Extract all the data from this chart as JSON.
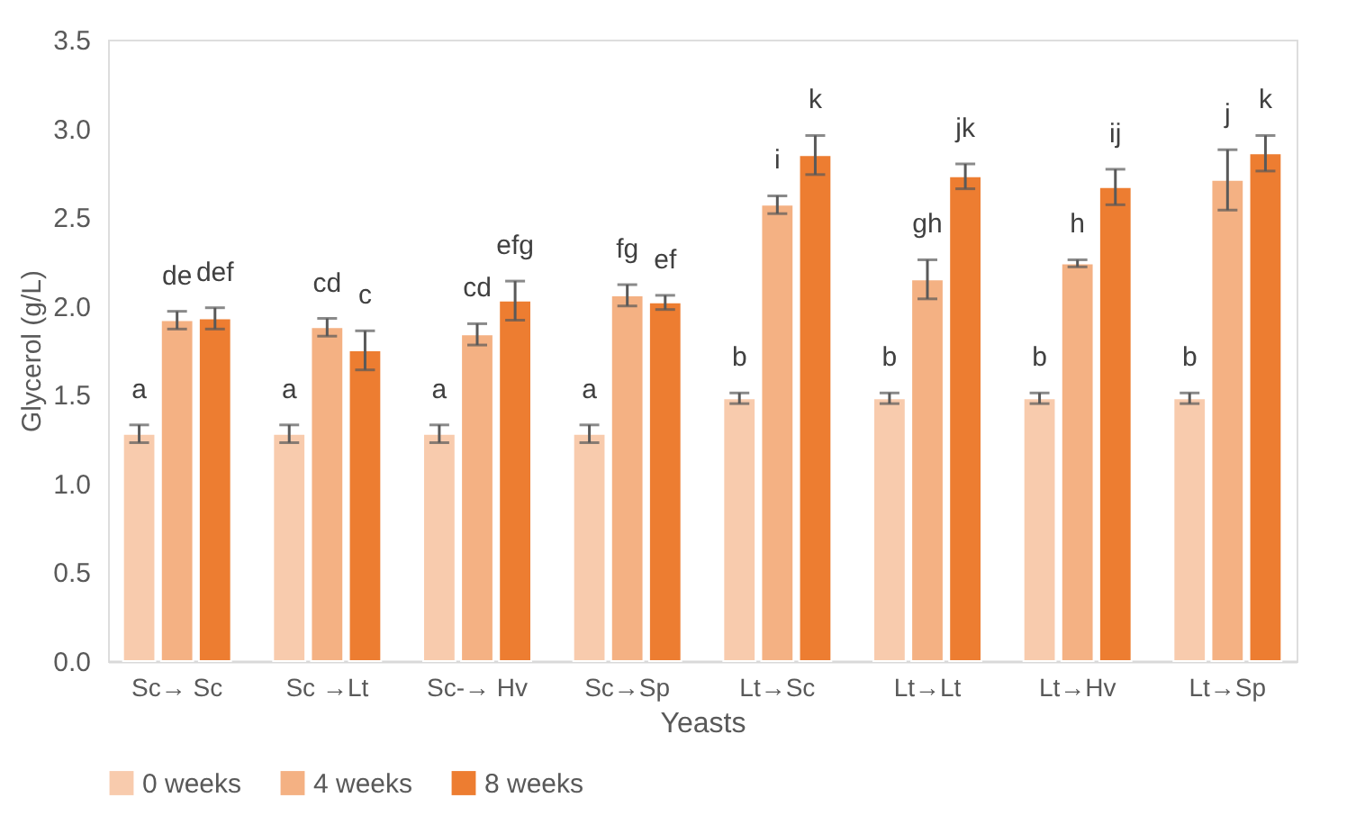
{
  "chart_data": {
    "type": "bar",
    "xlabel": "Yeasts",
    "ylabel": "Glycerol (g/L)",
    "categories": [
      "Sc→ Sc",
      "Sc →Lt",
      "Sc-→ Hv",
      "Sc→Sp",
      "Lt→Sc",
      "Lt→Lt",
      "Lt→Hv",
      "Lt→Sp"
    ],
    "series": [
      {
        "name": "0 weeks",
        "color": "#f8cbad",
        "values": [
          1.28,
          1.28,
          1.28,
          1.28,
          1.48,
          1.48,
          1.48,
          1.48
        ],
        "errors": [
          0.05,
          0.05,
          0.05,
          0.05,
          0.03,
          0.03,
          0.03,
          0.03
        ],
        "value_labels": [
          "a",
          "a",
          "a",
          "a",
          "b",
          "b",
          "b",
          "b"
        ]
      },
      {
        "name": "4 weeks",
        "color": "#f4b183",
        "values": [
          1.92,
          1.88,
          1.84,
          2.06,
          2.57,
          2.15,
          2.24,
          2.71
        ],
        "errors": [
          0.05,
          0.05,
          0.06,
          0.06,
          0.05,
          0.11,
          0.02,
          0.17
        ],
        "value_labels": [
          "de",
          "cd",
          "cd",
          "fg",
          "i",
          "gh",
          "h",
          "j"
        ]
      },
      {
        "name": "8 weeks",
        "color": "#ed7d31",
        "values": [
          1.93,
          1.75,
          2.03,
          2.02,
          2.85,
          2.73,
          2.67,
          2.86
        ],
        "errors": [
          0.06,
          0.11,
          0.11,
          0.04,
          0.11,
          0.07,
          0.1,
          0.1
        ],
        "value_labels": [
          "def",
          "c",
          "efg",
          "ef",
          "k",
          "jk",
          "ij",
          "k"
        ]
      }
    ],
    "ylim": [
      0,
      3.5
    ],
    "yticks": [
      {
        "value": 0,
        "label": "0.0"
      },
      {
        "value": 0.5,
        "label": "0.5"
      },
      {
        "value": 1,
        "label": "1.0"
      },
      {
        "value": 1.5,
        "label": "1.5"
      },
      {
        "value": 2,
        "label": "2.0"
      },
      {
        "value": 2.5,
        "label": "2.5"
      },
      {
        "value": 3,
        "label": "3.0"
      },
      {
        "value": 3.5,
        "label": "3.5"
      }
    ],
    "grid": false,
    "legend": "bottom"
  }
}
